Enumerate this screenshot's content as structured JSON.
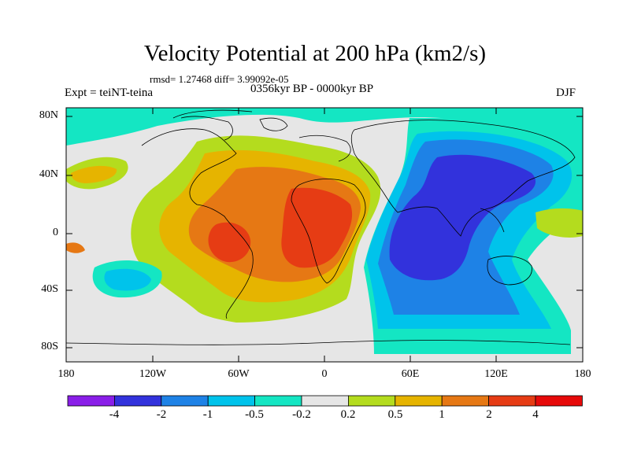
{
  "title": "Velocity Potential at 200 hPa (km2/s)",
  "stats": "rmsd= 1.27468 diff= 3.99092e-05",
  "experiment": "Expt = teiNT-teina",
  "period": "0356kyr BP - 0000kyr BP",
  "season": "DJF",
  "lat_ticks": [
    "80N",
    "40N",
    "0",
    "40S",
    "80S"
  ],
  "lon_ticks": [
    "180",
    "120W",
    "60W",
    "0",
    "60E",
    "120E",
    "180"
  ],
  "colorbar": {
    "labels": [
      "-4",
      "-2",
      "-1",
      "-0.5",
      "-0.2",
      "0.2",
      "0.5",
      "1",
      "2",
      "4"
    ],
    "colors": [
      "#8a1ee8",
      "#3232dc",
      "#1e82e6",
      "#00c3eb",
      "#14e6c3",
      "#e6e6e6",
      "#b4dc1e",
      "#e6b400",
      "#e67814",
      "#e63c14",
      "#e60a0a"
    ]
  }
}
